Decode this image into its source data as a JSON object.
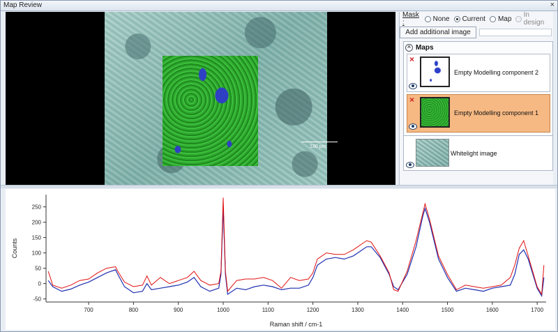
{
  "window": {
    "title": "Map Review",
    "close_glyph": "×"
  },
  "viewer": {
    "scale_label": "130 µm"
  },
  "mask": {
    "label": "Mask :",
    "options": [
      {
        "label": "None",
        "selected": false,
        "enabled": true
      },
      {
        "label": "Current",
        "selected": true,
        "enabled": true
      },
      {
        "label": "Map",
        "selected": false,
        "enabled": true
      },
      {
        "label": "In design",
        "selected": false,
        "enabled": false
      }
    ]
  },
  "add_image_button": "Add additional image",
  "maps": {
    "header": "Maps",
    "collapse_glyph": "^",
    "items": [
      {
        "name": "Empty Modelling component 2",
        "selected": false,
        "remove_glyph": "×"
      },
      {
        "name": "Empty Modelling component 1",
        "selected": true,
        "remove_glyph": "×"
      }
    ]
  },
  "whitelight": {
    "name": "Whitelight image"
  },
  "colors": {
    "observed": "#e01010",
    "model": "#1f2fb0",
    "selected_item": "#f7b983"
  },
  "chart_data": {
    "type": "line",
    "xlabel": "Raman shift / cm-1",
    "ylabel": "Counts",
    "xlim": [
      605,
      1720
    ],
    "ylim": [
      -60,
      290
    ],
    "xticks": [
      700,
      800,
      900,
      1000,
      1100,
      1200,
      1300,
      1400,
      1500,
      1600,
      1700
    ],
    "yticks": [
      -50,
      0,
      50,
      100,
      150,
      200,
      250
    ],
    "series": [
      {
        "color": "#1f2fb0",
        "x": [
          610,
          620,
          640,
          660,
          680,
          700,
          720,
          740,
          760,
          765,
          780,
          800,
          820,
          830,
          840,
          860,
          880,
          900,
          920,
          935,
          950,
          970,
          990,
          995,
          1000,
          1005,
          1010,
          1030,
          1050,
          1070,
          1090,
          1110,
          1130,
          1150,
          1170,
          1190,
          1200,
          1210,
          1230,
          1250,
          1270,
          1290,
          1300,
          1310,
          1320,
          1330,
          1350,
          1370,
          1380,
          1390,
          1410,
          1430,
          1445,
          1450,
          1460,
          1480,
          1500,
          1520,
          1540,
          1560,
          1580,
          1600,
          1620,
          1640,
          1650,
          1660,
          1670,
          1680,
          1700,
          1710,
          1715
        ],
        "y": [
          10,
          -10,
          -25,
          -18,
          -5,
          5,
          20,
          35,
          45,
          30,
          -10,
          -30,
          -25,
          0,
          -20,
          -15,
          -10,
          -5,
          5,
          20,
          -10,
          -25,
          -15,
          30,
          250,
          30,
          -35,
          -15,
          -20,
          -10,
          -5,
          -10,
          -20,
          -15,
          -15,
          -5,
          20,
          60,
          80,
          85,
          80,
          90,
          100,
          110,
          120,
          120,
          85,
          30,
          -10,
          -20,
          30,
          120,
          220,
          245,
          200,
          80,
          20,
          -25,
          -15,
          -20,
          -25,
          -15,
          -10,
          -5,
          30,
          95,
          110,
          80,
          -15,
          -40,
          20
        ]
      },
      {
        "color": "#e01010",
        "x": [
          610,
          620,
          640,
          660,
          680,
          700,
          720,
          740,
          760,
          765,
          780,
          800,
          820,
          830,
          840,
          860,
          880,
          900,
          920,
          935,
          950,
          970,
          990,
          995,
          1000,
          1005,
          1010,
          1030,
          1050,
          1070,
          1090,
          1110,
          1130,
          1150,
          1170,
          1190,
          1200,
          1210,
          1230,
          1250,
          1270,
          1290,
          1300,
          1310,
          1320,
          1330,
          1350,
          1370,
          1380,
          1390,
          1410,
          1430,
          1445,
          1450,
          1460,
          1480,
          1500,
          1520,
          1540,
          1560,
          1580,
          1600,
          1620,
          1640,
          1650,
          1660,
          1670,
          1680,
          1700,
          1710,
          1715
        ],
        "y": [
          40,
          -5,
          -15,
          -5,
          10,
          15,
          35,
          50,
          55,
          40,
          5,
          -10,
          -5,
          25,
          -5,
          20,
          0,
          10,
          20,
          40,
          10,
          -5,
          0,
          40,
          280,
          40,
          -25,
          10,
          15,
          15,
          20,
          10,
          -15,
          20,
          10,
          15,
          35,
          80,
          100,
          95,
          95,
          110,
          120,
          130,
          140,
          135,
          90,
          35,
          -20,
          -25,
          40,
          140,
          230,
          260,
          210,
          90,
          30,
          -20,
          -5,
          -10,
          -15,
          -10,
          -5,
          20,
          60,
          115,
          140,
          90,
          -10,
          -35,
          60
        ]
      }
    ],
    "grid": false
  }
}
